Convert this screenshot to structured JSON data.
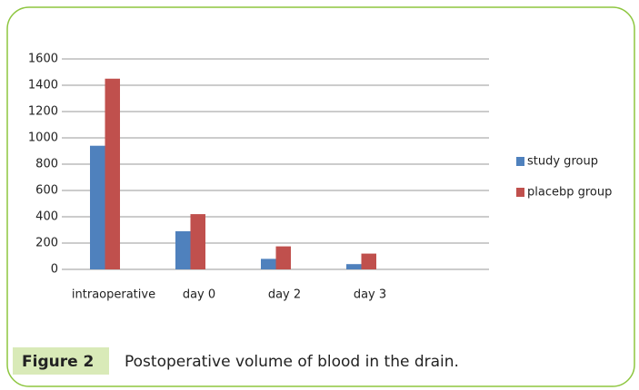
{
  "chart_data": {
    "type": "bar",
    "categories": [
      "intraoperative",
      "day 0",
      "day 2",
      "day 3",
      null
    ],
    "series": [
      {
        "name": "study group",
        "color": "#4f81bd",
        "values": [
          940,
          290,
          80,
          40,
          null
        ]
      },
      {
        "name": "placebp group",
        "color": "#c0504d",
        "values": [
          1450,
          420,
          175,
          120,
          null
        ]
      }
    ],
    "ylim": [
      0,
      1600
    ],
    "yticks": [
      0,
      200,
      400,
      600,
      800,
      1000,
      1200,
      1400,
      1600
    ],
    "grid": true,
    "legend": "right"
  },
  "figure": {
    "label": "Figure 2",
    "caption": "Postoperative volume of blood in the drain."
  }
}
